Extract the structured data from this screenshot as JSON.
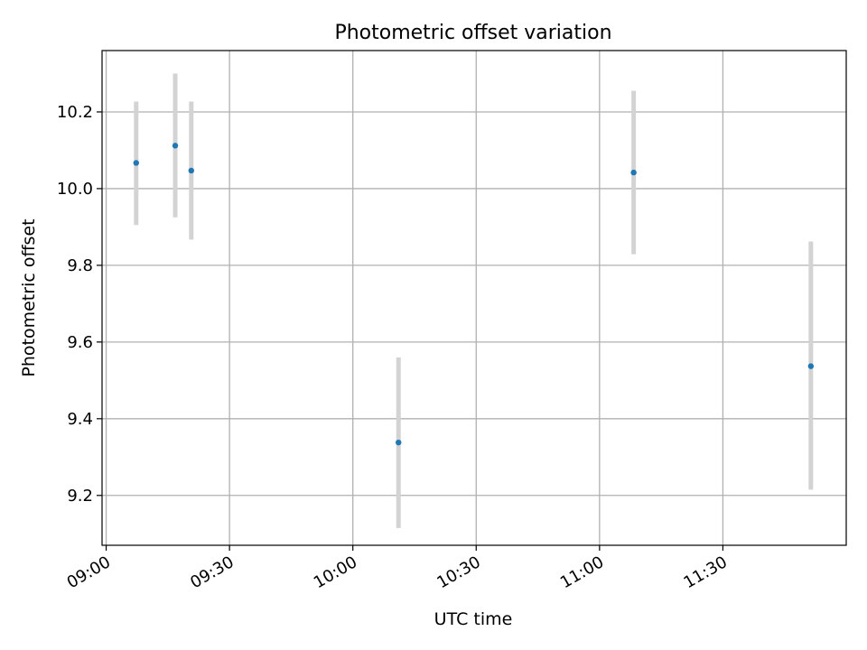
{
  "chart_data": {
    "type": "scatter",
    "title": "Photometric offset variation",
    "xlabel": "UTC time",
    "ylabel": "Photometric offset",
    "x_ticks": [
      {
        "minutes": 0,
        "label": "09:00"
      },
      {
        "minutes": 30,
        "label": "09:30"
      },
      {
        "minutes": 60,
        "label": "10:00"
      },
      {
        "minutes": 90,
        "label": "10:30"
      },
      {
        "minutes": 120,
        "label": "11:00"
      },
      {
        "minutes": 150,
        "label": "11:30"
      }
    ],
    "y_ticks": [
      {
        "value": 9.2,
        "label": "9.2"
      },
      {
        "value": 9.4,
        "label": "9.4"
      },
      {
        "value": 9.6,
        "label": "9.6"
      },
      {
        "value": 9.8,
        "label": "9.8"
      },
      {
        "value": 10.0,
        "label": "10.0"
      },
      {
        "value": 10.2,
        "label": "10.2"
      }
    ],
    "xlim_minutes": [
      -1,
      180
    ],
    "ylim": [
      9.07,
      10.36
    ],
    "grid": true,
    "series": [
      {
        "name": "offset",
        "x_minutes": [
          7.3,
          16.8,
          20.7,
          71.1,
          128.3,
          171.4
        ],
        "y": [
          10.067,
          10.112,
          10.047,
          9.338,
          10.042,
          9.537
        ],
        "err_low": [
          9.905,
          9.925,
          9.867,
          9.115,
          9.829,
          9.215
        ],
        "err_high": [
          10.227,
          10.3,
          10.227,
          9.56,
          10.255,
          9.862
        ]
      }
    ],
    "colors": {
      "point": "#1f77b4",
      "errorbar": "#d3d3d3",
      "grid": "#b0b0b0",
      "axes": "#000000"
    }
  }
}
